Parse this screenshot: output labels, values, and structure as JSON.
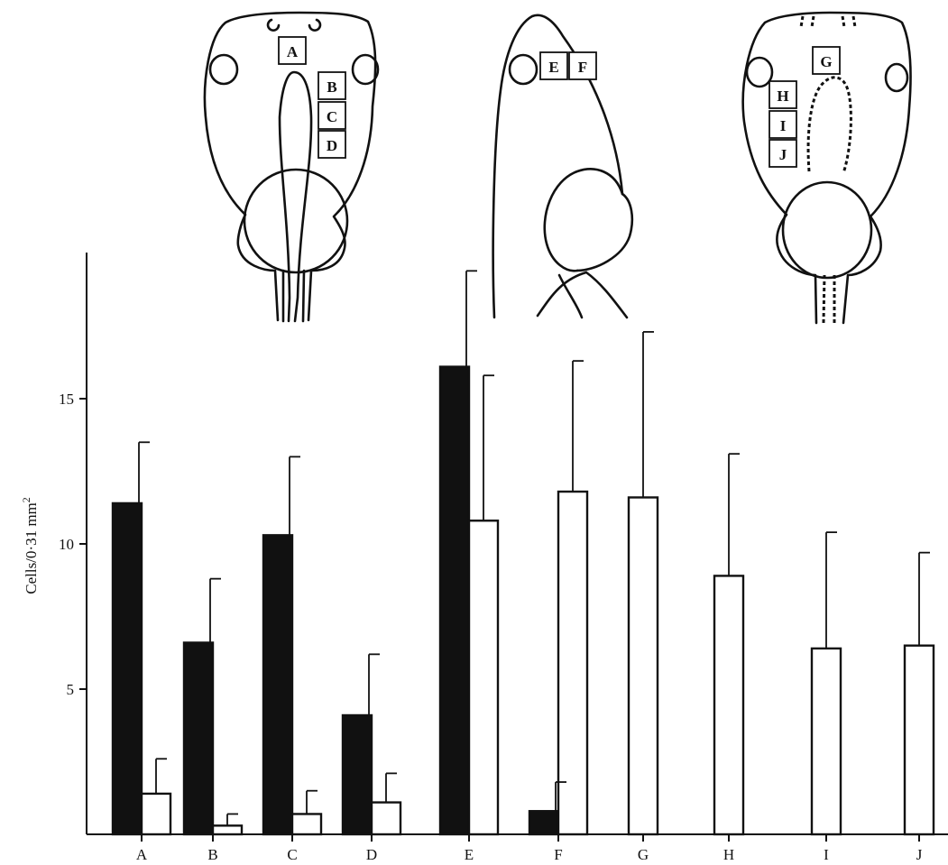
{
  "chart_data": {
    "type": "bar",
    "ylabel": "Cells/0·31 mm",
    "ylabel_superscript": "2",
    "ylim": [
      0,
      20
    ],
    "yticks": [
      5,
      10,
      15
    ],
    "categories": [
      "A",
      "B",
      "C",
      "D",
      "E",
      "F",
      "G",
      "H",
      "I",
      "J"
    ],
    "series": [
      {
        "fill": "#111111",
        "values": [
          11.4,
          6.6,
          10.3,
          4.1,
          16.1,
          0.8,
          null,
          null,
          null,
          null
        ],
        "errors": [
          2.1,
          2.2,
          2.7,
          2.1,
          3.3,
          1.0,
          null,
          null,
          null,
          null
        ]
      },
      {
        "fill": "#ffffff",
        "values": [
          1.4,
          0.3,
          0.7,
          1.1,
          10.8,
          11.8,
          11.6,
          8.9,
          6.4,
          6.5
        ],
        "errors": [
          1.2,
          0.4,
          0.8,
          1.0,
          5.0,
          4.5,
          5.7,
          4.2,
          4.0,
          3.2
        ]
      }
    ],
    "grid": false
  },
  "diagrams": {
    "dorsal_regions": [
      "A",
      "B",
      "C",
      "D"
    ],
    "lateral_regions": [
      "E",
      "F"
    ],
    "ventral_regions": [
      "G",
      "H",
      "I",
      "J"
    ]
  }
}
